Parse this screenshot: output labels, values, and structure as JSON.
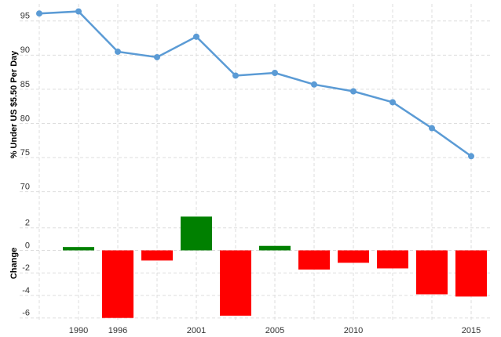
{
  "chart_data": [
    {
      "type": "line",
      "y_label": "% Under US $5.50 Per Day",
      "values": [
        96.1,
        96.4,
        90.5,
        89.7,
        92.7,
        87.0,
        87.4,
        85.7,
        84.7,
        83.1,
        79.3,
        75.2
      ],
      "color": "#5b9bd5",
      "ylim": [
        68,
        97.5
      ],
      "yticks": [
        70,
        75,
        80,
        85,
        90,
        95
      ],
      "grid": true
    },
    {
      "type": "bar",
      "y_label": "Change",
      "categories": [
        null,
        "1990",
        "1996",
        null,
        "2001",
        null,
        "2005",
        null,
        "2010",
        null,
        null,
        "2015"
      ],
      "values": [
        null,
        0.3,
        -6.0,
        -0.9,
        3.0,
        -5.8,
        0.4,
        -1.7,
        -1.1,
        -1.6,
        -3.9,
        -4.1
      ],
      "positive_color": "#008000",
      "negative_color": "#ff0000",
      "ylim": [
        -6.3,
        4
      ],
      "yticks": [
        -6,
        -4,
        -2,
        0,
        2
      ],
      "grid": true
    }
  ]
}
